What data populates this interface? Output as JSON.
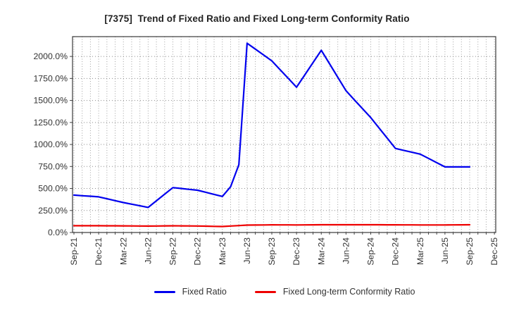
{
  "title": "[7375]  Trend of Fixed Ratio and Fixed Long-term Conformity Ratio",
  "chart_data": {
    "type": "line",
    "title": "[7375]  Trend of Fixed Ratio and Fixed Long-term Conformity Ratio",
    "x_tick_labels": [
      "Sep-21",
      "Dec-21",
      "Mar-22",
      "Jun-22",
      "Sep-22",
      "Dec-22",
      "Mar-23",
      "Jun-23",
      "Sep-23",
      "Dec-23",
      "Mar-24",
      "Jun-24",
      "Sep-24",
      "Dec-24",
      "Mar-25",
      "Jun-25",
      "Sep-25",
      "Dec-25"
    ],
    "x_minor_gridlines_per_label": 3,
    "x_note": "monthly data points, quarterly tick labels; series end at Sep-25, axis extends to Dec-25",
    "ylim": [
      0,
      2225
    ],
    "y_tick_labels": [
      "0.0%",
      "250.0%",
      "500.0%",
      "750.0%",
      "1000.0%",
      "1250.0%",
      "1500.0%",
      "1750.0%",
      "2000.0%"
    ],
    "y_tick_values": [
      0,
      250,
      500,
      750,
      1000,
      1250,
      1500,
      1750,
      2000
    ],
    "grid": true,
    "legend_position": "bottom-center",
    "series": [
      {
        "name": "Fixed Ratio",
        "color": "#0000ee",
        "values": [
          425,
          418,
          412,
          405,
          383,
          362,
          340,
          322,
          303,
          285,
          360,
          435,
          510,
          500,
          490,
          480,
          457,
          433,
          410,
          520,
          770,
          2150,
          2083,
          2017,
          1950,
          1850,
          1750,
          1650,
          1790,
          1930,
          2070,
          1917,
          1763,
          1610,
          1508,
          1407,
          1305,
          1188,
          1072,
          955,
          933,
          912,
          890,
          842,
          793,
          745,
          745,
          745,
          745
        ]
      },
      {
        "name": "Fixed Long-term Conformity Ratio",
        "color": "#ee0000",
        "values": [
          77,
          77,
          77,
          77,
          76.3,
          75.7,
          75,
          74.3,
          73.7,
          73,
          74,
          75,
          76,
          75.3,
          74.7,
          74,
          72,
          70,
          68,
          73.3,
          78.7,
          84,
          85,
          86,
          87,
          86.7,
          86.3,
          86,
          86.7,
          87.3,
          88,
          88,
          88,
          88,
          88,
          88,
          88,
          87.7,
          87.3,
          87,
          86.7,
          86.3,
          86,
          86,
          86,
          86,
          86.7,
          87.3,
          88
        ]
      }
    ]
  }
}
